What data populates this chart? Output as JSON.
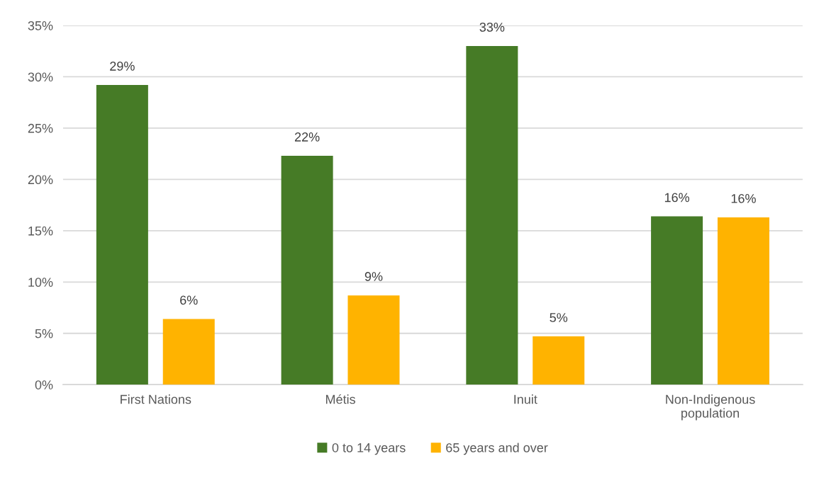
{
  "chart_data": {
    "type": "bar",
    "categories": [
      "First Nations",
      "Métis",
      "Inuit",
      "Non-Indigenous\npopulation"
    ],
    "series": [
      {
        "name": "0 to 14 years",
        "color": "#467b26",
        "values": [
          29.2,
          22.3,
          33.0,
          16.4
        ],
        "value_labels": [
          "29%",
          "22%",
          "33%",
          "16%"
        ]
      },
      {
        "name": "65 years and over",
        "color": "#ffb300",
        "values": [
          6.4,
          8.7,
          4.7,
          16.3
        ],
        "value_labels": [
          "6%",
          "9%",
          "5%",
          "16%"
        ]
      }
    ],
    "ylim": [
      0,
      35
    ],
    "yticks": [
      {
        "value": 0,
        "label": "0%"
      },
      {
        "value": 5,
        "label": "5%"
      },
      {
        "value": 10,
        "label": "10%"
      },
      {
        "value": 15,
        "label": "15%"
      },
      {
        "value": 20,
        "label": "20%"
      },
      {
        "value": 25,
        "label": "25%"
      },
      {
        "value": 30,
        "label": "30%"
      },
      {
        "value": 35,
        "label": "35%"
      }
    ],
    "grid": "y",
    "legend": "bottom"
  }
}
